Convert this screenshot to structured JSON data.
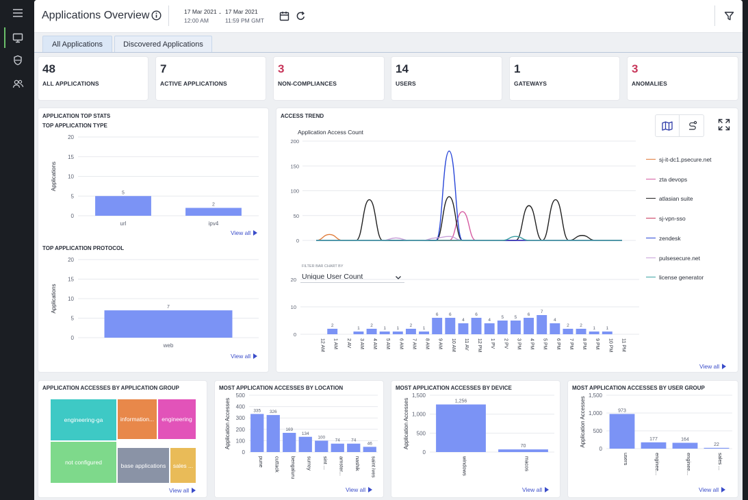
{
  "header": {
    "title": "Applications Overview",
    "date_from": "17 Mar 2021",
    "time_from": "12:00 AM",
    "date_sep": "-",
    "date_to": "17 Mar 2021",
    "time_to": "11:59 PM GMT"
  },
  "tabs": [
    {
      "label": "All Applications",
      "active": true
    },
    {
      "label": "Discovered Applications",
      "active": false
    }
  ],
  "stats": [
    {
      "value": "48",
      "label": "ALL APPLICATIONS",
      "color": "#2a2f3a"
    },
    {
      "value": "7",
      "label": "ACTIVE APPLICATIONS",
      "color": "#2a2f3a"
    },
    {
      "value": "3",
      "label": "NON-COMPLIANCES",
      "color": "#c8365a"
    },
    {
      "value": "14",
      "label": "USERS",
      "color": "#2a2f3a"
    },
    {
      "value": "1",
      "label": "GATEWAYS",
      "color": "#2a2f3a"
    },
    {
      "value": "3",
      "label": "ANOMALIES",
      "color": "#c8365a"
    }
  ],
  "top_stats": {
    "title": "APPLICATION TOP STATS",
    "type_title": "TOP APPLICATION TYPE",
    "protocol_title": "TOP APPLICATION PROTOCOL",
    "view_all": "View all"
  },
  "access_trend": {
    "title": "ACCESS TREND",
    "chart_title": "Application Access Count",
    "filter_label": "FILTER BAR CHART BY",
    "filter_value": "Unique User Count",
    "view_all": "View all"
  },
  "bottom": {
    "group_title": "APPLICATION ACCESSES BY APPLICATION GROUP",
    "location_title": "MOST APPLICATION ACCESSES BY LOCATION",
    "device_title": "MOST APPLICATION ACCESSES BY DEVICE",
    "usergroup_title": "MOST APPLICATION ACCESSES BY USER GROUP",
    "view_all": "View all"
  },
  "colors": {
    "bar": "#7b93f5",
    "accent_link": "#3a4cc9",
    "alert": "#c8365a"
  },
  "chart_data": [
    {
      "id": "type",
      "type": "bar",
      "title": "TOP APPLICATION TYPE",
      "ylabel": "Applications",
      "ylim": [
        0,
        20
      ],
      "yticks": [
        0,
        5,
        10,
        15,
        20
      ],
      "categories": [
        "url",
        "ipv4"
      ],
      "values": [
        5,
        2
      ],
      "labels": [
        "5",
        "2"
      ]
    },
    {
      "id": "protocol",
      "type": "bar",
      "title": "TOP APPLICATION PROTOCOL",
      "ylabel": "Applications",
      "ylim": [
        0,
        20
      ],
      "yticks": [
        0,
        5,
        10,
        15,
        20
      ],
      "categories": [
        "web"
      ],
      "values": [
        7
      ],
      "labels": [
        "7"
      ]
    },
    {
      "id": "trend",
      "type": "line",
      "title": "Application Access Count",
      "ylim": [
        0,
        200
      ],
      "yticks": [
        0,
        50,
        100,
        150,
        200
      ],
      "x": [
        "12 AM",
        "1 AM",
        "2 AM",
        "3 AM",
        "4 AM",
        "5 AM",
        "6 AM",
        "7 AM",
        "8 AM",
        "9 AM",
        "10 AM",
        "11 AM",
        "12 PM",
        "1 PM",
        "2 PM",
        "3 PM",
        "4 PM",
        "5 PM",
        "6 PM",
        "7 PM",
        "8 PM",
        "9 PM",
        "10 PM",
        "11 PM"
      ],
      "series": [
        {
          "name": "sj-it-dc1.psecure.net",
          "color": "#e07b39",
          "values": [
            0,
            12,
            0,
            0,
            0,
            0,
            0,
            0,
            0,
            0,
            0,
            0,
            0,
            0,
            0,
            0,
            0,
            0,
            0,
            0,
            0,
            0,
            0,
            0
          ]
        },
        {
          "name": "zta devops",
          "color": "#d55aa0",
          "values": [
            0,
            0,
            0,
            0,
            0,
            0,
            0,
            0,
            0,
            0,
            0,
            58,
            0,
            0,
            0,
            0,
            0,
            0,
            0,
            0,
            0,
            0,
            0,
            0
          ]
        },
        {
          "name": "atlasian suite",
          "color": "#1f1f1f",
          "values": [
            0,
            0,
            0,
            0,
            82,
            0,
            0,
            0,
            0,
            0,
            88,
            0,
            0,
            0,
            0,
            0,
            70,
            0,
            82,
            0,
            10,
            0,
            0,
            0
          ]
        },
        {
          "name": "sj-vpn-sso",
          "color": "#c8365a",
          "values": [
            0,
            0,
            0,
            0,
            0,
            0,
            0,
            0,
            0,
            0,
            0,
            0,
            0,
            0,
            0,
            0,
            0,
            0,
            0,
            0,
            0,
            0,
            0,
            0
          ]
        },
        {
          "name": "zendesk",
          "color": "#2846d8",
          "values": [
            0,
            0,
            0,
            0,
            0,
            0,
            0,
            0,
            0,
            0,
            180,
            0,
            0,
            0,
            0,
            0,
            0,
            0,
            0,
            0,
            0,
            0,
            0,
            0
          ]
        },
        {
          "name": "pulsesecure.net",
          "color": "#c7a0d8",
          "values": [
            0,
            0,
            0,
            0,
            0,
            0,
            5,
            0,
            0,
            5,
            8,
            0,
            0,
            0,
            0,
            8,
            0,
            0,
            0,
            0,
            0,
            0,
            0,
            0
          ]
        },
        {
          "name": "license generator",
          "color": "#3aa3a3",
          "values": [
            0,
            0,
            0,
            0,
            0,
            0,
            0,
            0,
            0,
            0,
            0,
            0,
            0,
            0,
            0,
            8,
            0,
            0,
            0,
            0,
            0,
            0,
            0,
            0
          ]
        }
      ]
    },
    {
      "id": "users",
      "type": "bar",
      "title": "Unique User Count",
      "ylim": [
        0,
        20
      ],
      "yticks": [
        0,
        10,
        20
      ],
      "categories": [
        "12 AM",
        "1 AM",
        "2 AM",
        "3 AM",
        "4 AM",
        "5 AM",
        "6 AM",
        "7 AM",
        "8 AM",
        "9 AM",
        "10 AM",
        "11 AM",
        "12 PM",
        "1 PM",
        "2 PM",
        "3 PM",
        "4 PM",
        "5 PM",
        "6 PM",
        "7 PM",
        "8 PM",
        "9 PM",
        "10 PM",
        "11 PM"
      ],
      "tick_labels": [
        "12 AM",
        "1 AM",
        "2 AV",
        "3 AM",
        "4 AM",
        "5 AM",
        "6 AM",
        "7 AM",
        "8 AM",
        "9 AM",
        "10 AM",
        "11 AV",
        "12 PM",
        "1 PV",
        "2 PV",
        "3 PM",
        "4 PM",
        "5 PM",
        "6 PM",
        "7 PM",
        "8 PM",
        "9 PM",
        "10 PM",
        "11 PM"
      ],
      "values": [
        0,
        2,
        0,
        1,
        2,
        1,
        1,
        2,
        1,
        6,
        6,
        4,
        6,
        4,
        5,
        5,
        6,
        7,
        4,
        2,
        2,
        1,
        1,
        0
      ],
      "labels": [
        "",
        "2",
        "",
        "1",
        "2",
        "1",
        "1",
        "2",
        "1",
        "6",
        "6",
        "4",
        "6",
        "4",
        "5",
        "5",
        "6",
        "7",
        "4",
        "2",
        "2",
        "1",
        "1",
        ""
      ]
    },
    {
      "id": "group",
      "type": "treemap",
      "title": "APPLICATION ACCESSES BY APPLICATION GROUP",
      "items": [
        {
          "name": "engineering-ga",
          "color": "#3ec9c5"
        },
        {
          "name": "not configured",
          "color": "#7ed98b"
        },
        {
          "name": "information...",
          "color": "#e8884a"
        },
        {
          "name": "engineering",
          "color": "#e253b9"
        },
        {
          "name": "base applications",
          "color": "#8a93a6"
        },
        {
          "name": "sales ...",
          "color": "#e9bb58"
        }
      ]
    },
    {
      "id": "location",
      "type": "bar",
      "title": "MOST APPLICATION ACCESSES BY LOCATION",
      "ylabel": "Application Accesses",
      "ylim": [
        0,
        500
      ],
      "yticks": [
        0,
        100,
        200,
        300,
        400,
        500
      ],
      "categories": [
        "pune",
        "cuttack",
        "bengaluru",
        "surrey",
        "sint ...",
        "amster...",
        "nashik",
        "saint ives"
      ],
      "values": [
        335,
        326,
        169,
        134,
        100,
        74,
        74,
        46
      ],
      "labels": [
        "335",
        "326",
        "169",
        "134",
        "100",
        "74",
        "74",
        "46"
      ]
    },
    {
      "id": "device",
      "type": "bar",
      "title": "MOST APPLICATION ACCESSES BY DEVICE",
      "ylabel": "Application Accesses",
      "ylim": [
        0,
        1500
      ],
      "yticks": [
        0,
        500,
        1000,
        1500
      ],
      "ytick_labels": [
        "0",
        "500",
        "1,000",
        "1,500"
      ],
      "categories": [
        "windows",
        "macos"
      ],
      "values": [
        1256,
        70
      ],
      "labels": [
        "1,256",
        "70"
      ]
    },
    {
      "id": "usergroup",
      "type": "bar",
      "title": "MOST APPLICATION ACCESSES BY USER GROUP",
      "ylabel": "Application Accesses",
      "ylim": [
        0,
        1500
      ],
      "yticks": [
        0,
        500,
        1000,
        1500
      ],
      "ytick_labels": [
        "0",
        "500",
        "1,000",
        "1,500"
      ],
      "categories": [
        "users",
        "enginee...",
        "enginee...",
        "sales ..."
      ],
      "values": [
        973,
        177,
        164,
        22
      ],
      "labels": [
        "973",
        "177",
        "164",
        "22"
      ]
    }
  ]
}
